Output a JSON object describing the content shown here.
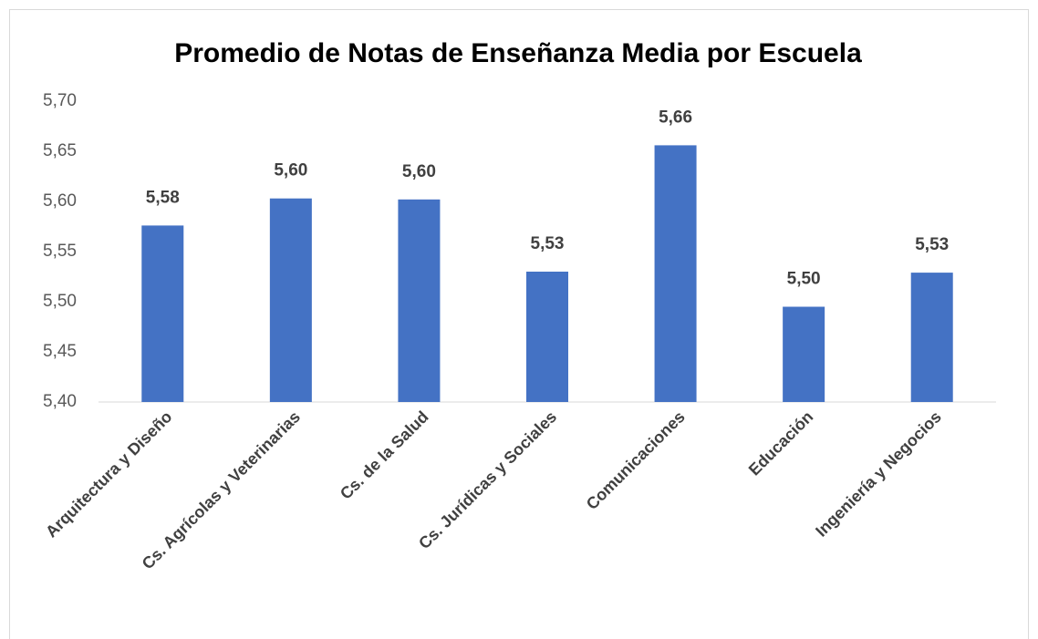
{
  "chart_data": {
    "type": "bar",
    "title": "Promedio de Notas de Enseñanza Media por Escuela",
    "categories": [
      "Arquitectura y Diseño",
      "Cs. Agrícolas y Veterinarias",
      "Cs. de la Salud",
      "Cs. Jurídicas y Sociales",
      "Comunicaciones",
      "Educación",
      "Ingeniería y Negocios"
    ],
    "values": [
      5.576,
      5.603,
      5.602,
      5.53,
      5.656,
      5.495,
      5.529
    ],
    "value_labels": [
      "5,58",
      "5,60",
      "5,60",
      "5,53",
      "5,66",
      "5,50",
      "5,53"
    ],
    "color": "#4472c4",
    "ylim": [
      5.4,
      5.7
    ],
    "yticks": [
      {
        "value": 5.4,
        "label": "5,40"
      },
      {
        "value": 5.45,
        "label": "5,45"
      },
      {
        "value": 5.5,
        "label": "5,50"
      },
      {
        "value": 5.55,
        "label": "5,55"
      },
      {
        "value": 5.6,
        "label": "5,60"
      },
      {
        "value": 5.65,
        "label": "5,65"
      },
      {
        "value": 5.7,
        "label": "5,70"
      }
    ],
    "grid": false
  }
}
